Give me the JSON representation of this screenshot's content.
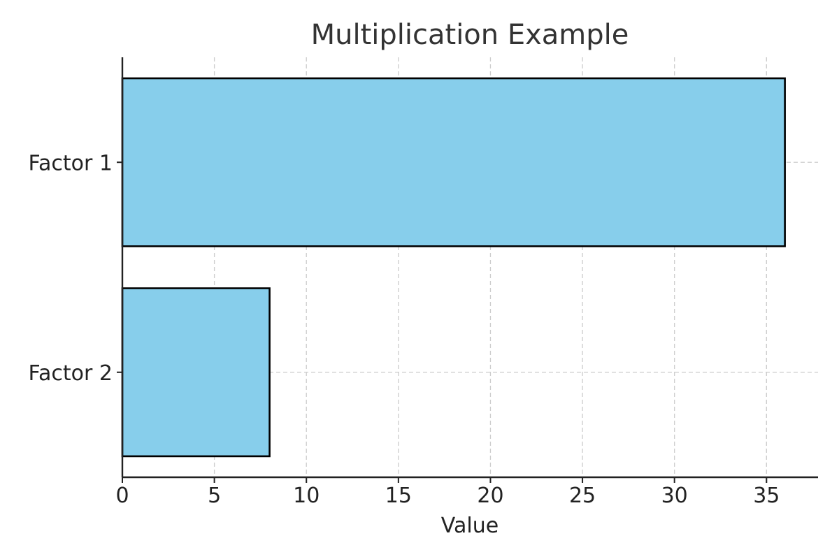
{
  "chart_data": {
    "type": "bar",
    "orientation": "horizontal",
    "title": "Multiplication Example",
    "xlabel": "Value",
    "ylabel": "",
    "categories": [
      "Factor 1",
      "Factor 2"
    ],
    "values": [
      36,
      8
    ],
    "xlim": [
      0,
      37.8
    ],
    "xticks": [
      0,
      5,
      10,
      15,
      20,
      25,
      30,
      35
    ],
    "grid": true,
    "bar_color": "#87CEEB",
    "bar_edge_color": "#000000",
    "grid_color": "#cccccc"
  }
}
